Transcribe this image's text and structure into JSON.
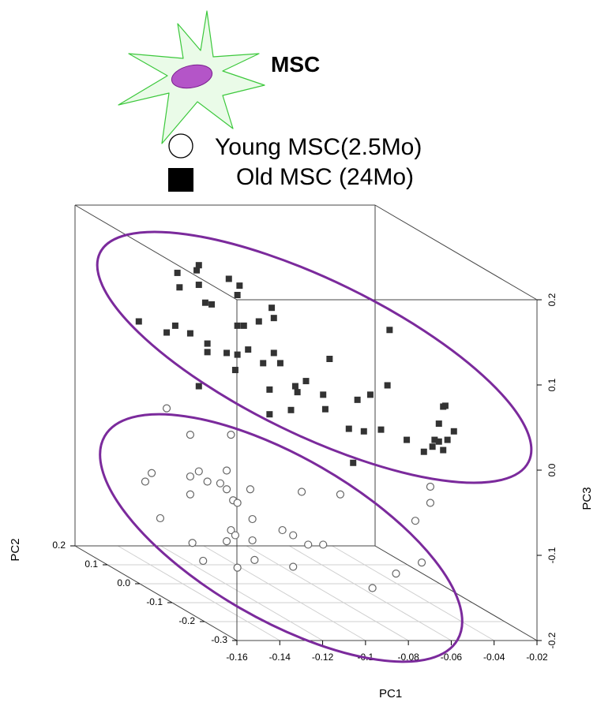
{
  "chart_data": {
    "type": "scatter3d",
    "annotation": "MSC",
    "xlabel": "PC1",
    "ylabel": "PC2",
    "zlabel": "PC3",
    "xlim": [
      -0.16,
      -0.02
    ],
    "ylim": [
      -0.3,
      0.2
    ],
    "zlim": [
      -0.2,
      0.2
    ],
    "xticks": [
      -0.16,
      -0.14,
      -0.12,
      -0.1,
      -0.08,
      -0.06,
      -0.04,
      -0.02
    ],
    "yticks": [
      0.2,
      0.1,
      {
        "value": 0,
        "label": "0.0"
      },
      -0.1,
      -0.2,
      -0.3
    ],
    "zticks": [
      0.2,
      0.1,
      {
        "value": 0,
        "label": "0.0"
      },
      -0.1,
      -0.2
    ],
    "grid": true,
    "ellipse_color": "#7b2a9c",
    "series": [
      {
        "name": "Young MSC(2.5Mo)",
        "marker": "circle",
        "color": "#666666",
        "x": [
          -0.155,
          -0.144,
          -0.125,
          -0.162,
          -0.165,
          -0.144,
          -0.14,
          -0.136,
          -0.127,
          -0.13,
          -0.144,
          -0.127,
          -0.116,
          -0.124,
          -0.122,
          -0.092,
          -0.074,
          -0.032,
          -0.032,
          -0.158,
          -0.115,
          -0.125,
          -0.039,
          -0.143,
          -0.127,
          -0.115,
          -0.101,
          -0.096,
          -0.089,
          -0.082,
          -0.123,
          -0.138,
          -0.114,
          -0.096,
          -0.122,
          -0.036,
          -0.048,
          -0.059
        ],
        "y": [
          -0.05,
          -0.05,
          -0.05,
          -0.05,
          -0.05,
          -0.05,
          -0.05,
          -0.05,
          -0.05,
          -0.05,
          -0.05,
          -0.05,
          -0.05,
          -0.05,
          -0.05,
          -0.05,
          -0.05,
          -0.05,
          -0.05,
          -0.05,
          -0.05,
          -0.05,
          -0.05,
          -0.05,
          -0.05,
          -0.05,
          -0.05,
          -0.05,
          -0.05,
          -0.05,
          -0.05,
          -0.05,
          -0.05,
          -0.05,
          -0.05,
          -0.05,
          -0.05,
          -0.05
        ],
        "z": [
          0.017,
          -0.014,
          -0.014,
          -0.059,
          -0.069,
          -0.063,
          -0.057,
          -0.069,
          -0.056,
          -0.071,
          -0.084,
          -0.078,
          -0.078,
          -0.091,
          -0.094,
          -0.081,
          -0.084,
          -0.075,
          -0.094,
          -0.112,
          -0.113,
          -0.126,
          -0.115,
          -0.141,
          -0.139,
          -0.138,
          -0.126,
          -0.132,
          -0.143,
          -0.143,
          -0.132,
          -0.162,
          -0.161,
          -0.169,
          -0.17,
          -0.164,
          -0.177,
          -0.194
        ]
      },
      {
        "name": "Old MSC (24Mo)",
        "marker": "square",
        "color": "#333333",
        "x": [
          -0.14,
          -0.15,
          -0.141,
          -0.126,
          -0.121,
          -0.149,
          -0.14,
          -0.137,
          -0.134,
          -0.122,
          -0.106,
          -0.105,
          -0.168,
          -0.151,
          -0.155,
          -0.144,
          -0.122,
          -0.119,
          -0.112,
          -0.051,
          -0.136,
          -0.136,
          -0.127,
          -0.122,
          -0.117,
          -0.105,
          -0.079,
          -0.11,
          -0.102,
          -0.123,
          -0.09,
          -0.095,
          -0.107,
          -0.052,
          -0.14,
          -0.094,
          -0.06,
          -0.082,
          -0.066,
          -0.097,
          -0.081,
          -0.107,
          -0.025,
          -0.026,
          -0.028,
          -0.07,
          -0.021,
          -0.063,
          -0.055,
          -0.043,
          -0.03,
          -0.028,
          -0.024,
          -0.031,
          -0.026,
          -0.035,
          -0.068
        ],
        "y": [
          -0.05,
          -0.05,
          -0.05,
          -0.05,
          -0.05,
          -0.05,
          -0.05,
          -0.05,
          -0.05,
          -0.05,
          -0.05,
          -0.05,
          -0.05,
          -0.05,
          -0.05,
          -0.05,
          -0.05,
          -0.05,
          -0.05,
          -0.05,
          -0.05,
          -0.05,
          -0.05,
          -0.05,
          -0.05,
          -0.05,
          -0.05,
          -0.05,
          -0.05,
          -0.05,
          -0.05,
          -0.05,
          -0.05,
          -0.05,
          -0.05,
          -0.05,
          -0.05,
          -0.05,
          -0.05,
          -0.05,
          -0.05,
          -0.05,
          -0.05,
          -0.05,
          -0.05,
          -0.05,
          -0.05,
          -0.05,
          -0.05,
          -0.05,
          -0.05,
          -0.05,
          -0.05,
          -0.05,
          -0.05,
          -0.05,
          -0.05
        ],
        "z": [
          0.185,
          0.176,
          0.179,
          0.169,
          0.161,
          0.159,
          0.162,
          0.141,
          0.139,
          0.15,
          0.135,
          0.123,
          0.119,
          0.114,
          0.106,
          0.105,
          0.114,
          0.114,
          0.119,
          0.109,
          0.093,
          0.083,
          0.082,
          0.08,
          0.086,
          0.082,
          0.075,
          0.07,
          0.07,
          0.062,
          0.049,
          0.043,
          0.039,
          0.044,
          0.043,
          0.036,
          0.033,
          0.033,
          0.027,
          0.015,
          0.016,
          0.01,
          0.02,
          0.019,
          -0.001,
          -0.007,
          -0.01,
          -0.01,
          -0.008,
          -0.02,
          -0.02,
          -0.022,
          -0.02,
          -0.028,
          -0.032,
          -0.034,
          -0.047
        ]
      }
    ]
  }
}
